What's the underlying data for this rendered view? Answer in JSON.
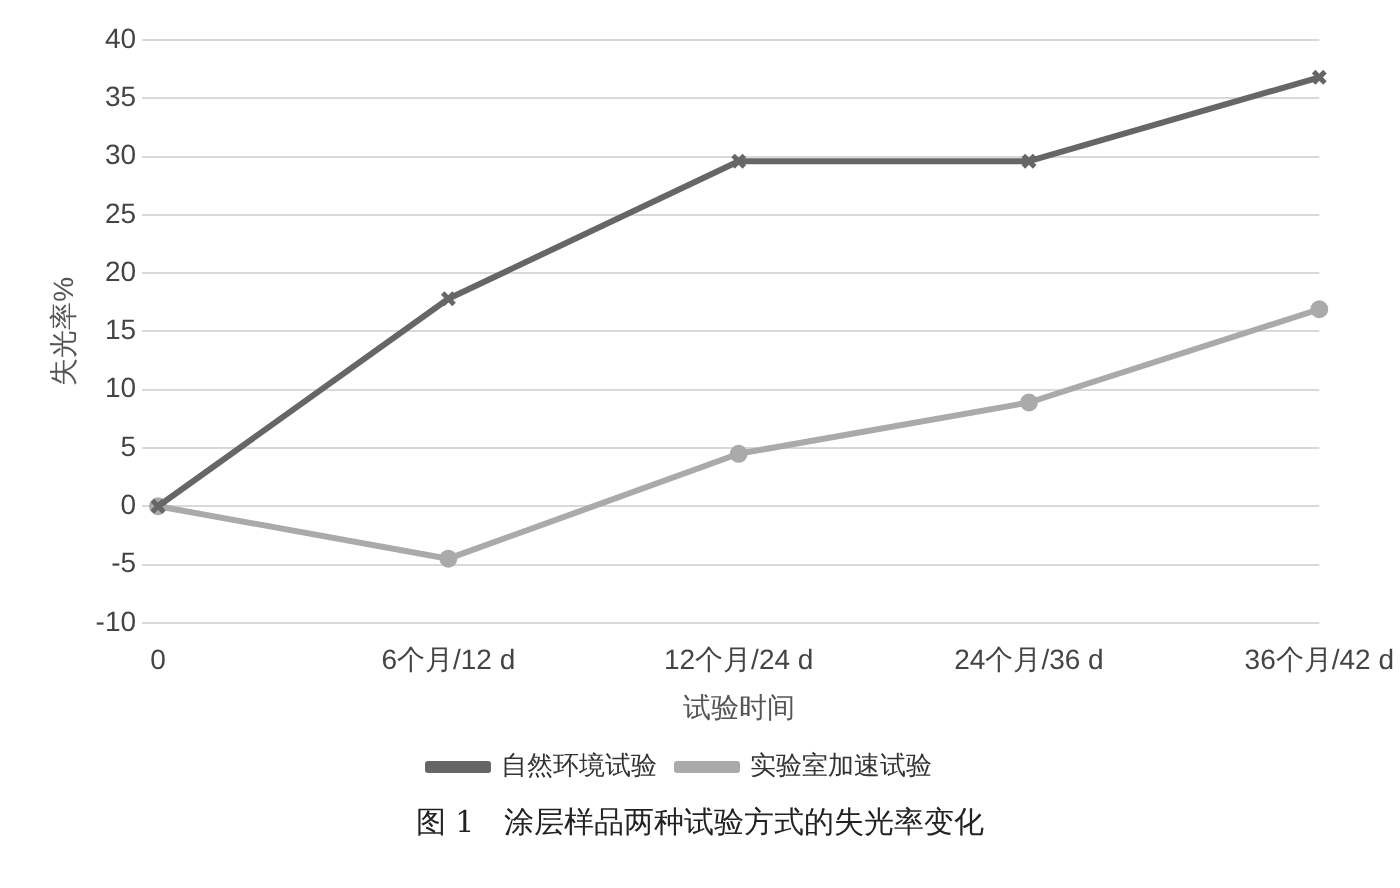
{
  "chart_data": {
    "type": "line",
    "xlabel": "试验时间",
    "ylabel": "失光率%",
    "categories": [
      "0",
      "6个月/12 d",
      "12个月/24 d",
      "24个月/36 d",
      "36个月/42 d"
    ],
    "series": [
      {
        "name": "自然环境试验",
        "color": "#666666",
        "marker": "cross",
        "values": [
          0,
          17.8,
          29.6,
          29.6,
          36.8
        ]
      },
      {
        "name": "实验室加速试验",
        "color": "#aaaaaa",
        "marker": "circle",
        "values": [
          0,
          -4.5,
          4.5,
          8.9,
          16.9
        ]
      }
    ],
    "ylim": [
      -10,
      40
    ],
    "yticks": [
      -10,
      -5,
      0,
      5,
      10,
      15,
      20,
      25,
      30,
      35,
      40
    ],
    "grid": "y",
    "legend": "bottom",
    "line_style": "solid",
    "annotations": [
      "图 1　涂层样品两种试验方式的失光率变化"
    ]
  }
}
